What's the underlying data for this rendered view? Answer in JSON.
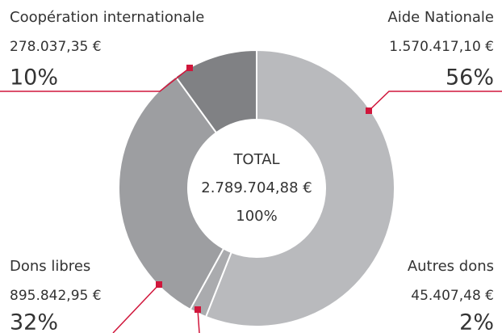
{
  "chart_data": {
    "type": "donut",
    "categories": [
      "Aide Nationale",
      "Autres dons",
      "Dons libres",
      "Coopération internationale"
    ],
    "values": [
      56,
      2,
      32,
      10
    ],
    "value_labels": [
      "56%",
      "2%",
      "32%",
      "10%"
    ],
    "amount_labels": [
      "1.570.417,10 €",
      "45.407,48 €",
      "895.842,95 €",
      "278.037,35 €"
    ],
    "colors": [
      "#b9babd",
      "#aaabae",
      "#9d9ea1",
      "#808184"
    ],
    "accent_color": "#d0163b",
    "center": {
      "title": "TOTAL",
      "amount": "2.789.704,88 €",
      "percent": "100%"
    }
  }
}
